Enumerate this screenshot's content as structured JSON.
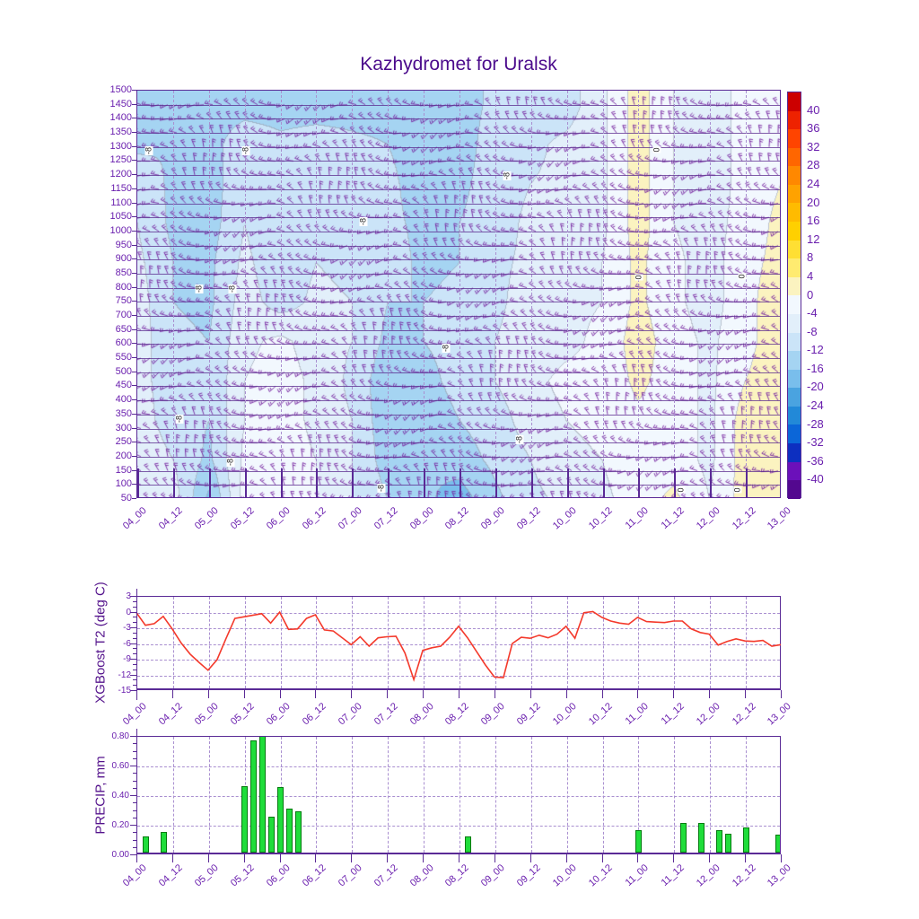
{
  "title": {
    "text": "Kazhydromet for Uralsk"
  },
  "x_ticks": [
    "04_00",
    "04_12",
    "05_00",
    "05_12",
    "06_00",
    "06_12",
    "07_00",
    "07_12",
    "08_00",
    "08_12",
    "09_00",
    "09_12",
    "10_00",
    "10_12",
    "11_00",
    "11_12",
    "12_00",
    "12_12",
    "13_00"
  ],
  "chart_data": [
    {
      "type": "heatmap",
      "name": "temperature-cross-section",
      "title": "Kazhydromet for Uralsk",
      "y_ticks": [
        1500,
        1450,
        1400,
        1350,
        1300,
        1250,
        1200,
        1150,
        1100,
        1050,
        1000,
        950,
        900,
        850,
        800,
        750,
        700,
        650,
        600,
        550,
        500,
        450,
        400,
        350,
        300,
        250,
        200,
        150,
        100,
        50
      ],
      "ylim": [
        50,
        1500
      ],
      "grid": "on",
      "colorbar": {
        "ticks": [
          40,
          36,
          32,
          28,
          24,
          20,
          16,
          12,
          8,
          4,
          0,
          -4,
          -8,
          -12,
          -16,
          -20,
          -24,
          -28,
          -32,
          -36,
          -40
        ],
        "colors": [
          "#cc0000",
          "#ee2200",
          "#ff4400",
          "#ff6600",
          "#ff8800",
          "#ffa200",
          "#ffbb00",
          "#ffd000",
          "#ffdf33",
          "#ffeb70",
          "#fbf3c0",
          "#f2f8fe",
          "#e2effa",
          "#cbe4f8",
          "#a5d4f2",
          "#79beec",
          "#4aa3e0",
          "#2289d8",
          "#0b66d8",
          "#0d2fc0",
          "#6b10ba",
          "#53088f"
        ]
      },
      "band_colors": {
        "-5": "#79beec",
        "-4": "#a5d4f2",
        "-3": "#cbe4f8",
        "-2": "#e2effa",
        "-1": "#f2f8fe",
        "0": "#fbf3c0",
        "1": "#ffeb70"
      },
      "temp_grid": {
        "x_cols_every_hours": 12,
        "row_levels": [
          1450,
          1310,
          1170,
          1030,
          890,
          750,
          610,
          470,
          330,
          190,
          50
        ],
        "values": [
          [
            -14,
            -14,
            -14,
            -14,
            -14,
            -14,
            -14,
            -14,
            -14,
            -14,
            -11,
            -10,
            -10,
            -5,
            2,
            -4,
            -7,
            -2,
            -2
          ],
          [
            -13,
            -12,
            -14,
            -9,
            -11,
            -10,
            -11,
            -12,
            -14,
            -14,
            -10,
            -9,
            -7,
            -5,
            2,
            -4,
            -7,
            -2,
            -1
          ],
          [
            -9,
            -13,
            -14,
            -9,
            -12,
            -10,
            -10,
            -11,
            -14,
            -13,
            -10,
            -8,
            -7,
            -5,
            2,
            -4,
            -7,
            -2,
            0
          ],
          [
            -8,
            -13,
            -14,
            -8,
            -12,
            -9,
            -10,
            -11,
            -13,
            -12,
            -10,
            -7,
            -6,
            -5,
            2,
            -4,
            -6,
            -2,
            1
          ],
          [
            -7,
            -12,
            -13,
            -7,
            -11,
            -8,
            -9,
            -10,
            -13,
            -12,
            -9,
            -7,
            -6,
            -4,
            1,
            -3,
            -6,
            -1,
            1
          ],
          [
            -6,
            -12,
            -13,
            -6,
            -10,
            -7,
            -8,
            -12,
            -12,
            -11,
            -9,
            -6,
            -5,
            -4,
            1,
            -3,
            -6,
            -1,
            2
          ],
          [
            -6,
            -11,
            -12,
            -5,
            -3,
            -6,
            -8,
            -13,
            -12,
            -11,
            -8,
            -6,
            -5,
            -3,
            2,
            -2,
            -5,
            -1,
            2
          ],
          [
            -6,
            -11,
            -12,
            -4,
            -2,
            -5,
            -9,
            -15,
            -13,
            -11,
            -8,
            -5,
            -3,
            -3,
            1,
            -2,
            -5,
            0,
            2
          ],
          [
            -6,
            -10,
            -12,
            -4,
            -2,
            -5,
            -8,
            -15,
            -14,
            -12,
            -10,
            -6,
            -4,
            -3,
            -1,
            -2,
            -5,
            2,
            2
          ],
          [
            -5,
            -8,
            -13,
            -3,
            -2,
            -4,
            -8,
            -14,
            -16,
            -14,
            -11,
            -8,
            -5,
            -4,
            -1,
            -2,
            -5,
            2,
            2
          ],
          [
            -4,
            -6,
            -17,
            -2,
            -3,
            -4,
            -8,
            -12,
            -15,
            -18,
            -13,
            -9,
            -7,
            -5,
            -2,
            1,
            -4,
            2,
            2
          ]
        ]
      },
      "contour_labels": [
        {
          "t": "-8",
          "x": 1.8,
          "y": 14.7
        },
        {
          "t": "-8",
          "x": 16.9,
          "y": 14.9
        },
        {
          "t": "-8",
          "x": 57.5,
          "y": 20.9
        },
        {
          "t": "-8",
          "x": 35.2,
          "y": 32.3
        },
        {
          "t": "-8",
          "x": 9.7,
          "y": 48.8
        },
        {
          "t": "-8",
          "x": 14.8,
          "y": 48.8
        },
        {
          "t": "-8",
          "x": 48.0,
          "y": 63.3
        },
        {
          "t": "-8",
          "x": 6.5,
          "y": 80.7
        },
        {
          "t": "-8",
          "x": 59.5,
          "y": 85.9
        },
        {
          "t": "-8",
          "x": 14.5,
          "y": 91.4
        },
        {
          "t": "-8",
          "x": 38.0,
          "y": 97.8
        },
        {
          "t": "0",
          "x": 80.9,
          "y": 14.5
        },
        {
          "t": "0",
          "x": 78.1,
          "y": 45.9
        },
        {
          "t": "0",
          "x": 94.2,
          "y": 45.7
        },
        {
          "t": "0",
          "x": 84.7,
          "y": 98.2
        },
        {
          "t": "0",
          "x": 93.5,
          "y": 98.2
        }
      ],
      "wind_barbs": {
        "color": "rgba(118,34,160,0.9)",
        "x_step_hours": 3,
        "y_step_levels": 50
      }
    },
    {
      "type": "line",
      "ylabel": "XGBoost T2 (deg C)",
      "y_ticks": [
        3,
        0,
        -3,
        -6,
        -9,
        -12,
        -15
      ],
      "ylim": [
        -15,
        3
      ],
      "line_color": "#f4392b",
      "start": "04_00",
      "step_hours": 3,
      "values": [
        -0.2,
        -2.6,
        -2.3,
        -0.9,
        -3.3,
        -6.0,
        -8.1,
        -9.7,
        -11.2,
        -9.2,
        -5.2,
        -1.3,
        -1.0,
        -0.7,
        -0.4,
        -2.2,
        -0.1,
        -3.4,
        -3.3,
        -1.3,
        -0.6,
        -3.5,
        -3.7,
        -5.0,
        -6.3,
        -4.8,
        -6.6,
        -5.0,
        -4.8,
        -4.7,
        -7.9,
        -13.0,
        -7.4,
        -6.9,
        -6.6,
        -4.9,
        -2.8,
        -5.0,
        -7.6,
        -10.2,
        -12.5,
        -12.6,
        -6.1,
        -4.9,
        -5.1,
        -4.5,
        -5.0,
        -4.3,
        -2.8,
        -5.1,
        -0.2,
        0.0,
        -1.1,
        -1.8,
        -2.2,
        -2.4,
        -1.1,
        -1.9,
        -2.0,
        -2.1,
        -1.8,
        -1.8,
        -3.3,
        -4.0,
        -4.3,
        -6.4,
        -5.7,
        -5.2,
        -5.6,
        -5.7,
        -5.5,
        -6.6,
        -6.3
      ]
    },
    {
      "type": "bar",
      "ylabel": "PRECIP, mm",
      "y_tick_labels": [
        "0.80",
        "0.60",
        "0.40",
        "0.20",
        "0.00"
      ],
      "y_tick_values": [
        0.8,
        0.6,
        0.4,
        0.2,
        0.0
      ],
      "ylim": [
        0,
        0.8
      ],
      "bar_color": "#1fdd3a",
      "bars": [
        {
          "t": "04_03",
          "v": 0.11
        },
        {
          "t": "04_09",
          "v": 0.14
        },
        {
          "t": "05_12",
          "v": 0.45
        },
        {
          "t": "05_15",
          "v": 0.76
        },
        {
          "t": "05_18",
          "v": 0.79
        },
        {
          "t": "05_21",
          "v": 0.24
        },
        {
          "t": "06_00",
          "v": 0.44
        },
        {
          "t": "06_03",
          "v": 0.3
        },
        {
          "t": "06_06",
          "v": 0.28
        },
        {
          "t": "08_15",
          "v": 0.11
        },
        {
          "t": "11_00",
          "v": 0.15
        },
        {
          "t": "11_15",
          "v": 0.2
        },
        {
          "t": "11_21",
          "v": 0.2
        },
        {
          "t": "12_03",
          "v": 0.15
        },
        {
          "t": "12_06",
          "v": 0.13
        },
        {
          "t": "12_12",
          "v": 0.17
        },
        {
          "t": "13_00",
          "v": 0.12
        }
      ]
    }
  ]
}
